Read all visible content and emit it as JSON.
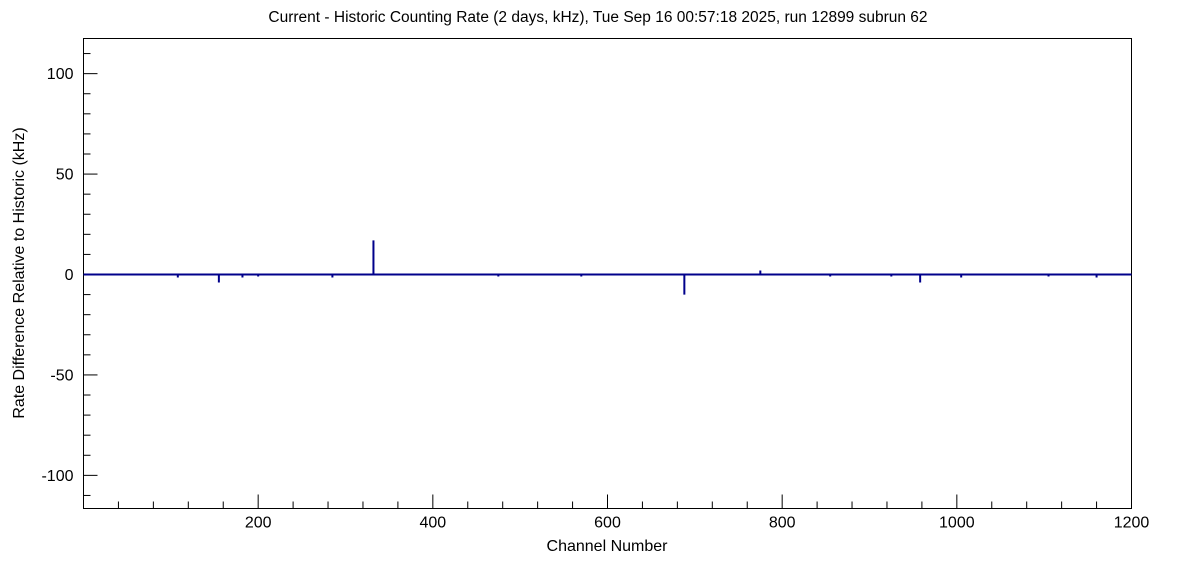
{
  "chart_data": {
    "type": "line",
    "title": "Current - Historic Counting Rate (2 days, kHz), Tue Sep 16 00:57:18 2025, run 12899 subrun 62",
    "xlabel": "Channel Number",
    "ylabel": "Rate Difference Relative to Historic (kHz)",
    "xlim": [
      0,
      1200
    ],
    "ylim": [
      -116.5,
      117.5
    ],
    "x_major_ticks": [
      200,
      400,
      600,
      800,
      1000,
      1200
    ],
    "x_minor_step": 40,
    "y_major_ticks": [
      -100,
      -50,
      0,
      50,
      100
    ],
    "y_minor_step": 10,
    "grid": false,
    "legend": null,
    "baseline": 0,
    "series": [
      {
        "name": "rate-difference",
        "color": "#00008b",
        "spikes": [
          [
            108,
            -1.5
          ],
          [
            155,
            -4
          ],
          [
            182,
            -1.5
          ],
          [
            200,
            -1
          ],
          [
            285,
            -1.5
          ],
          [
            332,
            17
          ],
          [
            475,
            -1
          ],
          [
            570,
            -1
          ],
          [
            688,
            -10
          ],
          [
            775,
            2
          ],
          [
            855,
            -1
          ],
          [
            925,
            -1
          ],
          [
            958,
            -4
          ],
          [
            1005,
            -1.5
          ],
          [
            1105,
            -1
          ],
          [
            1160,
            -1.5
          ]
        ]
      }
    ]
  },
  "style": {
    "background": "#ffffff",
    "axis_color": "#000000",
    "line_color": "#00008b"
  }
}
